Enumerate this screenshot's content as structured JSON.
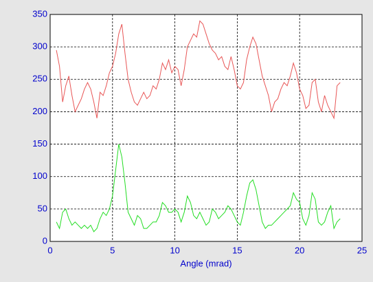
{
  "chart_data": {
    "type": "line",
    "x_label": "Angle (mrad)",
    "x": [
      0.5,
      0.75,
      1.0,
      1.25,
      1.5,
      1.75,
      2.0,
      2.25,
      2.5,
      2.75,
      3.0,
      3.25,
      3.5,
      3.75,
      4.0,
      4.25,
      4.5,
      4.75,
      5.0,
      5.25,
      5.5,
      5.75,
      6.0,
      6.25,
      6.5,
      6.75,
      7.0,
      7.25,
      7.5,
      7.75,
      8.0,
      8.25,
      8.5,
      8.75,
      9.0,
      9.25,
      9.5,
      9.75,
      10.0,
      10.25,
      10.5,
      10.75,
      11.0,
      11.25,
      11.5,
      11.75,
      12.0,
      12.25,
      12.5,
      12.75,
      13.0,
      13.25,
      13.5,
      13.75,
      14.0,
      14.25,
      14.5,
      14.75,
      15.0,
      15.25,
      15.5,
      15.75,
      16.0,
      16.25,
      16.5,
      16.75,
      17.0,
      17.25,
      17.5,
      17.75,
      18.0,
      18.25,
      18.5,
      18.75,
      19.0,
      19.25,
      19.5,
      19.75,
      20.0,
      20.25,
      20.5,
      20.75,
      21.0,
      21.25,
      21.5,
      21.75,
      22.0,
      22.25,
      22.5,
      22.75,
      23.0,
      23.25
    ],
    "series": [
      {
        "color": "#e85555",
        "values": [
          295,
          270,
          215,
          240,
          255,
          225,
          200,
          210,
          220,
          235,
          245,
          235,
          215,
          190,
          230,
          225,
          240,
          260,
          270,
          290,
          320,
          335,
          290,
          250,
          230,
          215,
          210,
          220,
          230,
          220,
          225,
          240,
          235,
          250,
          275,
          265,
          280,
          260,
          270,
          265,
          240,
          265,
          300,
          310,
          320,
          315,
          340,
          335,
          320,
          305,
          295,
          290,
          280,
          285,
          270,
          265,
          285,
          265,
          240,
          235,
          245,
          280,
          300,
          315,
          305,
          280,
          255,
          240,
          225,
          200,
          215,
          220,
          235,
          245,
          240,
          255,
          275,
          260,
          235,
          225,
          205,
          210,
          245,
          250,
          215,
          200,
          225,
          210,
          200,
          190,
          240,
          245
        ]
      },
      {
        "color": "#22dd22",
        "values": [
          30,
          20,
          45,
          50,
          35,
          25,
          30,
          25,
          20,
          25,
          20,
          25,
          15,
          20,
          35,
          45,
          40,
          50,
          70,
          110,
          150,
          130,
          90,
          45,
          35,
          25,
          40,
          35,
          20,
          20,
          25,
          30,
          30,
          40,
          60,
          55,
          45,
          45,
          50,
          45,
          30,
          45,
          70,
          60,
          40,
          35,
          45,
          35,
          25,
          30,
          50,
          45,
          35,
          40,
          45,
          55,
          50,
          40,
          30,
          25,
          45,
          70,
          90,
          95,
          80,
          55,
          30,
          20,
          25,
          25,
          30,
          35,
          40,
          45,
          50,
          55,
          75,
          65,
          60,
          35,
          25,
          40,
          75,
          65,
          30,
          25,
          30,
          45,
          55,
          20,
          30,
          35
        ]
      }
    ],
    "xlim": [
      0,
      25
    ],
    "xticks": [
      0,
      5,
      10,
      15,
      20,
      25
    ],
    "ylim": [
      0,
      350
    ],
    "yticks": [
      0,
      50,
      100,
      150,
      200,
      250,
      300,
      350
    ],
    "grid": true
  }
}
